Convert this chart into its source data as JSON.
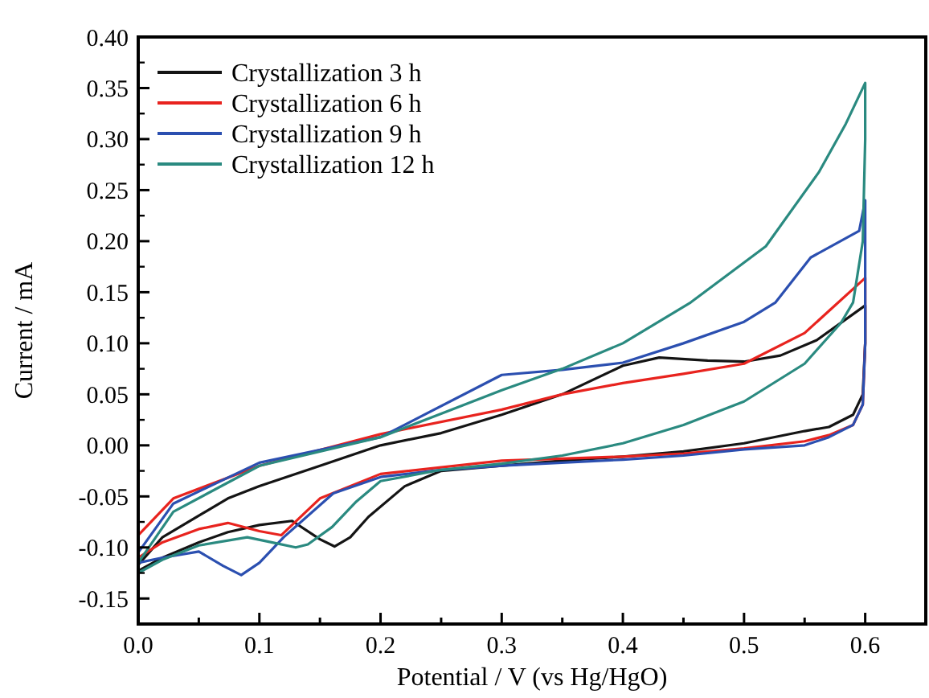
{
  "chart_data": {
    "type": "line",
    "xlabel": "Potential / V (vs Hg/HgO)",
    "ylabel": "Current / mA",
    "xlim": [
      0,
      0.65
    ],
    "ylim": [
      -0.175,
      0.4
    ],
    "xticks": [
      {
        "value": 0,
        "label": "0.0"
      },
      {
        "value": 0.05,
        "label": null
      },
      0.1,
      {
        "value": 0.15,
        "label": null
      },
      0.2,
      {
        "value": 0.25,
        "label": null
      },
      0.3,
      {
        "value": 0.35,
        "label": null
      },
      0.4,
      {
        "value": 0.45,
        "label": null
      },
      0.5,
      {
        "value": 0.55,
        "label": null
      },
      0.6
    ],
    "yticks": [
      {
        "value": -0.15,
        "label": "-0.15"
      },
      {
        "value": -0.1,
        "label": "-0.10"
      },
      {
        "value": -0.05,
        "label": "-0.05"
      },
      {
        "value": 0,
        "label": "0.00"
      },
      {
        "value": 0.05,
        "label": "0.05"
      },
      {
        "value": 0.1,
        "label": "0.10"
      },
      {
        "value": 0.15,
        "label": "0.15"
      },
      {
        "value": 0.2,
        "label": "0.20"
      },
      {
        "value": 0.25,
        "label": "0.25"
      },
      {
        "value": 0.3,
        "label": "0.30"
      },
      {
        "value": 0.35,
        "label": "0.35"
      },
      {
        "value": 0.4,
        "label": "0.40"
      }
    ],
    "grid": false,
    "legend": "top left",
    "marker": "none",
    "line_style": "solid",
    "series": [
      {
        "name": "Crystallization 3 h",
        "color": "#141414",
        "x": [
          0,
          0.02,
          0.074,
          0.1,
          0.15,
          0.2,
          0.25,
          0.3,
          0.35,
          0.4,
          0.43,
          0.47,
          0.5,
          0.53,
          0.56,
          0.6,
          0.6,
          0.598,
          0.59,
          0.57,
          0.55,
          0.5,
          0.45,
          0.4,
          0.35,
          0.3,
          0.25,
          0.22,
          0.19,
          0.175,
          0.162,
          0.15,
          0.127,
          0.1,
          0.074,
          0.05,
          0.02,
          0
        ],
        "values": [
          -0.117,
          -0.09,
          -0.052,
          -0.04,
          -0.02,
          0,
          0.012,
          0.03,
          0.05,
          0.078,
          0.086,
          0.083,
          0.082,
          0.088,
          0.103,
          0.137,
          0.1,
          0.05,
          0.03,
          0.018,
          0.014,
          0.002,
          -0.006,
          -0.011,
          -0.015,
          -0.02,
          -0.025,
          -0.04,
          -0.07,
          -0.09,
          -0.099,
          -0.092,
          -0.074,
          -0.078,
          -0.085,
          -0.095,
          -0.11,
          -0.123
        ]
      },
      {
        "name": "Crystallization 6 h",
        "color": "#e8231e",
        "x": [
          0,
          0.029,
          0.1,
          0.2,
          0.3,
          0.35,
          0.4,
          0.45,
          0.5,
          0.55,
          0.6,
          0.6,
          0.598,
          0.59,
          0.57,
          0.55,
          0.5,
          0.45,
          0.4,
          0.3,
          0.2,
          0.15,
          0.118,
          0.1,
          0.074,
          0.05,
          0.02,
          0
        ],
        "values": [
          -0.088,
          -0.052,
          -0.02,
          0.011,
          0.035,
          0.05,
          0.061,
          0.07,
          0.08,
          0.11,
          0.164,
          0.1,
          0.04,
          0.02,
          0.01,
          0.004,
          -0.003,
          -0.008,
          -0.011,
          -0.015,
          -0.028,
          -0.052,
          -0.088,
          -0.084,
          -0.076,
          -0.082,
          -0.095,
          -0.11
        ]
      },
      {
        "name": "Crystallization 9 h",
        "color": "#2b4fb0",
        "x": [
          0,
          0.029,
          0.1,
          0.2,
          0.3,
          0.35,
          0.4,
          0.45,
          0.5,
          0.526,
          0.555,
          0.595,
          0.6,
          0.6,
          0.598,
          0.59,
          0.57,
          0.55,
          0.5,
          0.45,
          0.4,
          0.3,
          0.25,
          0.2,
          0.161,
          0.12,
          0.1,
          0.085,
          0.07,
          0.05,
          0.02,
          0
        ],
        "values": [
          -0.105,
          -0.057,
          -0.017,
          0.008,
          0.069,
          0.074,
          0.081,
          0.1,
          0.121,
          0.14,
          0.184,
          0.21,
          0.24,
          0.1,
          0.04,
          0.02,
          0.008,
          0.0,
          -0.004,
          -0.01,
          -0.014,
          -0.02,
          -0.024,
          -0.031,
          -0.047,
          -0.09,
          -0.115,
          -0.127,
          -0.118,
          -0.104,
          -0.11,
          -0.115
        ]
      },
      {
        "name": "Crystallization 12 h",
        "color": "#2a8a80",
        "x": [
          0,
          0.029,
          0.1,
          0.2,
          0.3,
          0.35,
          0.4,
          0.456,
          0.518,
          0.562,
          0.584,
          0.6,
          0.6,
          0.598,
          0.59,
          0.58,
          0.55,
          0.5,
          0.45,
          0.4,
          0.35,
          0.3,
          0.25,
          0.2,
          0.18,
          0.16,
          0.14,
          0.13,
          0.11,
          0.09,
          0.05,
          0.02,
          0
        ],
        "values": [
          -0.115,
          -0.065,
          -0.02,
          0.008,
          0.054,
          0.075,
          0.1,
          0.14,
          0.195,
          0.268,
          0.315,
          0.355,
          0.3,
          0.2,
          0.14,
          0.12,
          0.08,
          0.043,
          0.02,
          0.002,
          -0.01,
          -0.018,
          -0.024,
          -0.035,
          -0.055,
          -0.08,
          -0.097,
          -0.1,
          -0.095,
          -0.09,
          -0.098,
          -0.112,
          -0.125
        ]
      }
    ]
  }
}
